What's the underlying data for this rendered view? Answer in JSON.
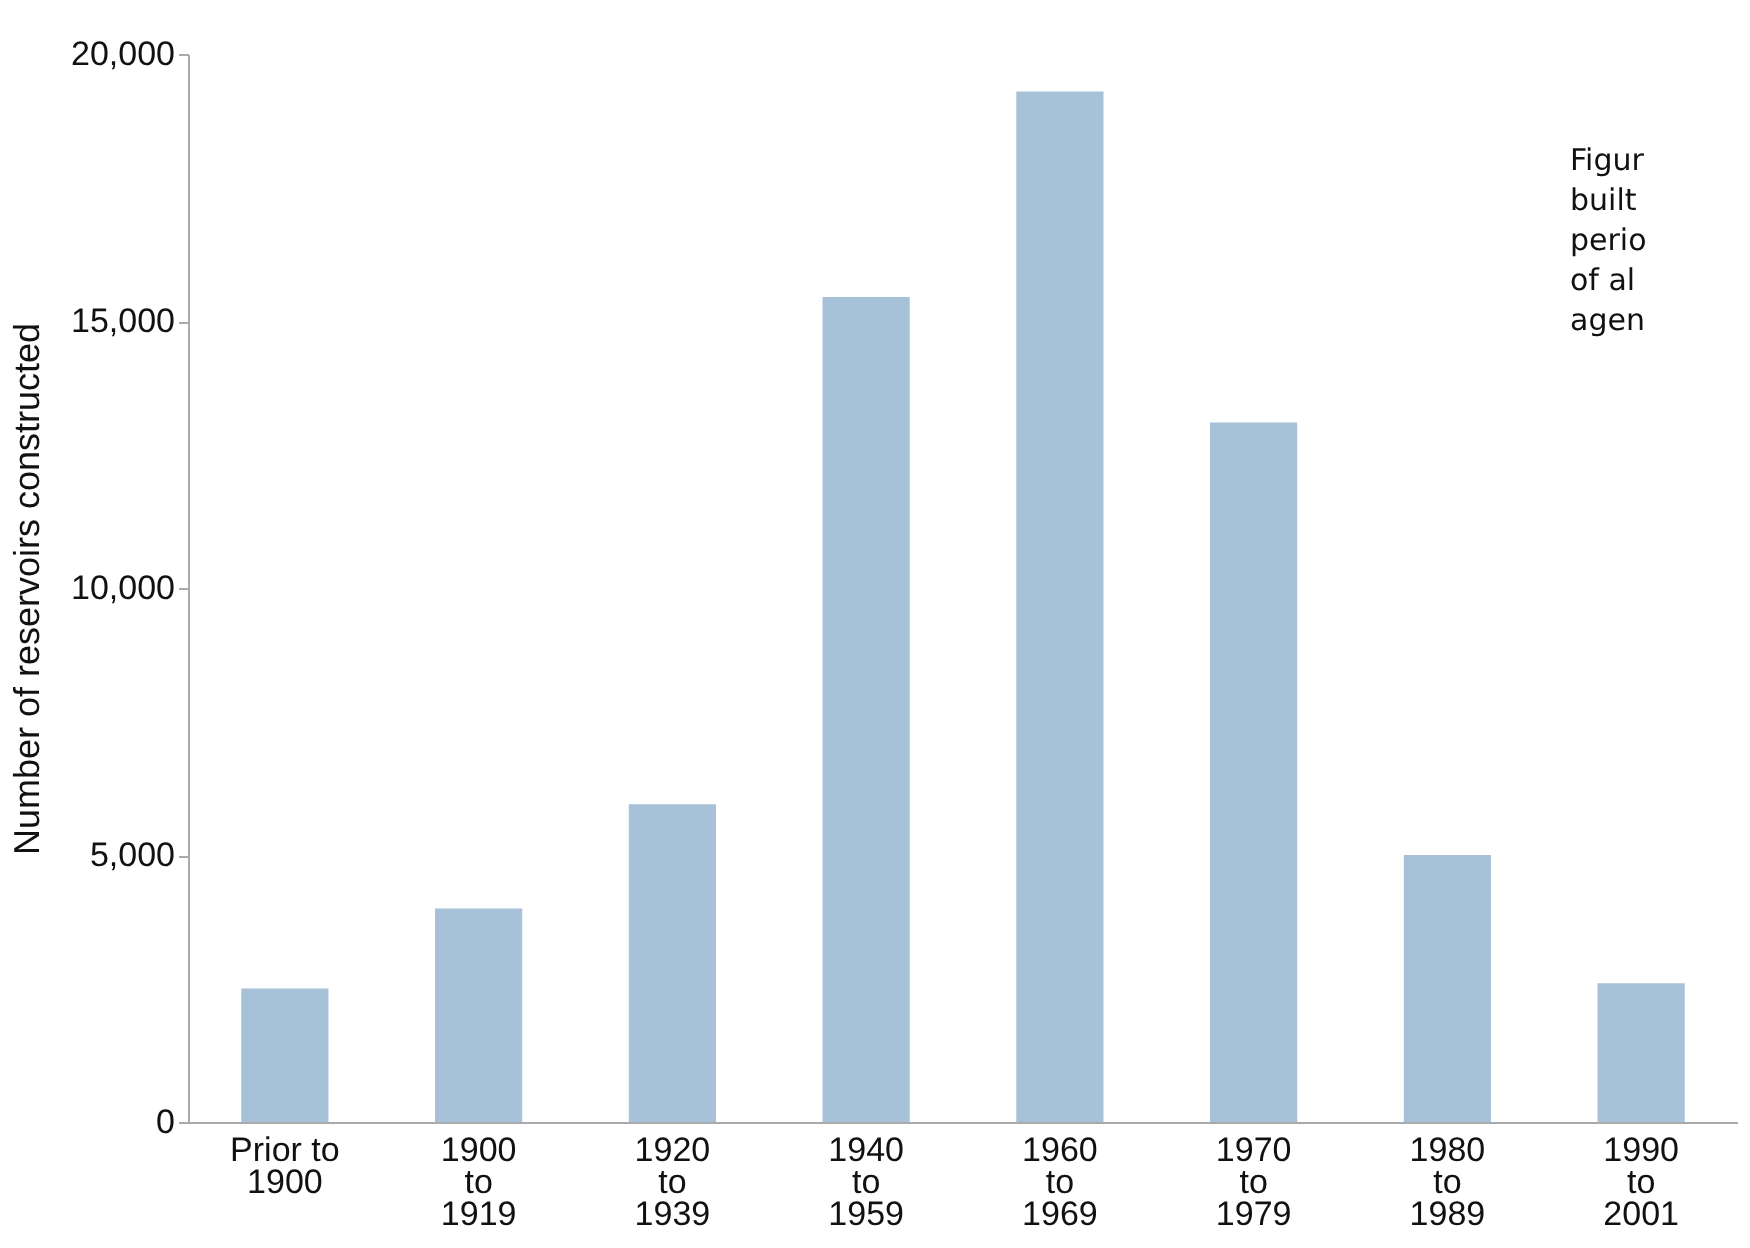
{
  "chart_data": {
    "type": "bar",
    "ylabel": "Number of reservoirs constructed",
    "categories": [
      "Prior to\n1900",
      "1900\nto\n1919",
      "1920\nto\n1939",
      "1940\nto\n1959",
      "1960\nto\n1969",
      "1970\nto\n1979",
      "1980\nto\n1989",
      "1990\nto\n2001"
    ],
    "values": [
      2500,
      4000,
      5950,
      15450,
      19300,
      13100,
      5000,
      2600
    ],
    "color": "#a6c1d8",
    "ylim": [
      0,
      20000
    ],
    "yticks": [
      0,
      {
        "value": 5000,
        "label": "5,000"
      },
      {
        "value": 10000,
        "label": "10,000"
      },
      {
        "value": 15000,
        "label": "15,000"
      },
      {
        "value": 20000,
        "label": "20,000"
      }
    ],
    "grid": false,
    "annotations": [
      "Figur\nbuilt\nperio\nof al\nagen"
    ]
  }
}
